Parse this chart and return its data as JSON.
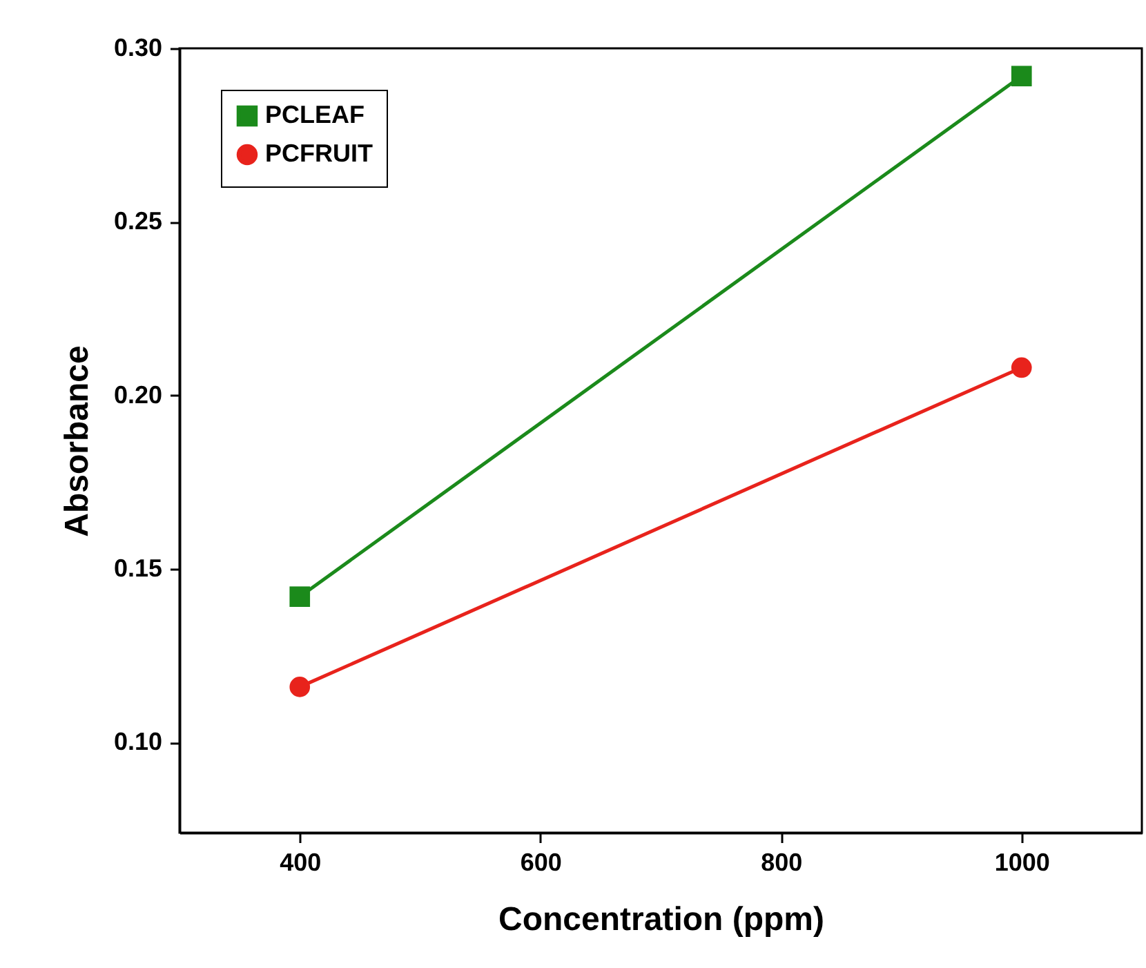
{
  "chart_data": {
    "type": "line",
    "xlabel": "Concentration (ppm)",
    "ylabel": "Absorbance",
    "x": [
      400,
      1000
    ],
    "series": [
      {
        "name": "PCLEAF",
        "color": "#1b8a1b",
        "marker": "square",
        "values": [
          0.142,
          0.292
        ]
      },
      {
        "name": "PCFRUIT",
        "color": "#e8231c",
        "marker": "circle",
        "values": [
          0.116,
          0.208
        ]
      }
    ],
    "xlim": [
      300,
      1100
    ],
    "xticks": [
      400,
      600,
      800,
      1000
    ],
    "ylim": [
      0.074,
      0.3
    ],
    "yticks": [
      {
        "value": 0.1,
        "label": "0.10"
      },
      {
        "value": 0.15,
        "label": "0.15"
      },
      {
        "value": 0.2,
        "label": "0.20"
      },
      {
        "value": 0.25,
        "label": "0.25"
      },
      {
        "value": 0.3,
        "label": "0.30"
      }
    ],
    "grid": false,
    "legend": "top left",
    "line_style": "solid"
  }
}
